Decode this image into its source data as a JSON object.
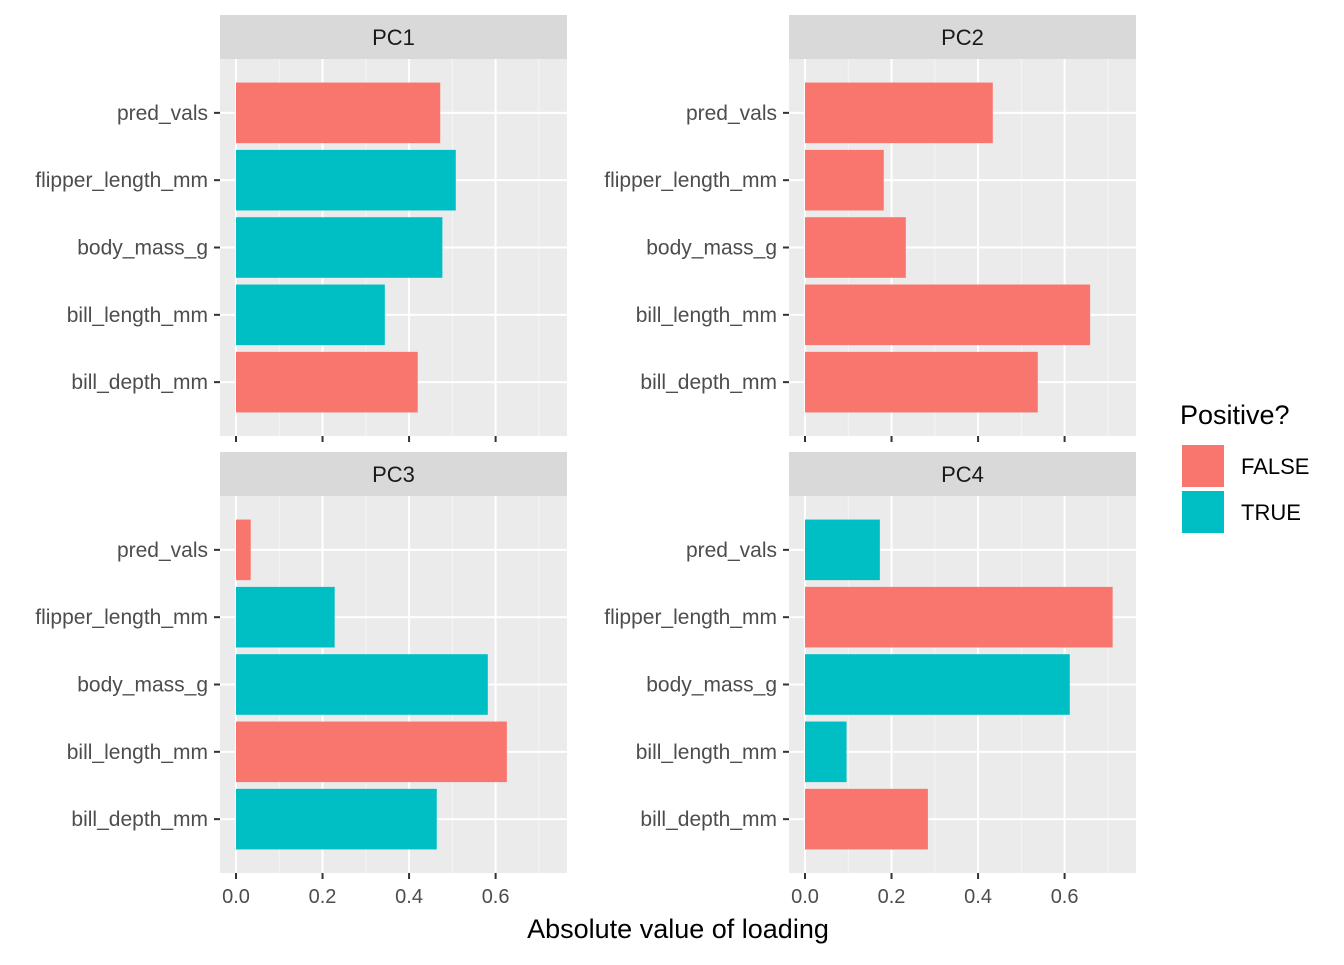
{
  "chart_data": {
    "type": "bar",
    "orientation": "horizontal",
    "xlabel": "Absolute value of loading",
    "ylabel": "",
    "xlim": [
      0,
      0.75
    ],
    "x_ticks": [
      0.0,
      0.2,
      0.4,
      0.6
    ],
    "x_tick_labels": [
      "0.0",
      "0.2",
      "0.4",
      "0.6"
    ],
    "grid": true,
    "legend_position": "right",
    "categories": [
      "pred_vals",
      "flipper_length_mm",
      "body_mass_g",
      "bill_length_mm",
      "bill_depth_mm"
    ],
    "legend": {
      "title": "Positive?",
      "entries": [
        {
          "label": "FALSE",
          "color": "#F8766D"
        },
        {
          "label": "TRUE",
          "color": "#00BFC4"
        }
      ]
    },
    "panels": [
      {
        "title": "PC1",
        "values": [
          0.472,
          0.508,
          0.477,
          0.344,
          0.42
        ],
        "positive": [
          "FALSE",
          "TRUE",
          "TRUE",
          "TRUE",
          "FALSE"
        ]
      },
      {
        "title": "PC2",
        "values": [
          0.434,
          0.182,
          0.233,
          0.659,
          0.538
        ],
        "positive": [
          "FALSE",
          "FALSE",
          "FALSE",
          "FALSE",
          "FALSE"
        ]
      },
      {
        "title": "PC3",
        "values": [
          0.034,
          0.228,
          0.582,
          0.626,
          0.464
        ],
        "positive": [
          "FALSE",
          "TRUE",
          "TRUE",
          "FALSE",
          "TRUE"
        ]
      },
      {
        "title": "PC4",
        "values": [
          0.173,
          0.711,
          0.612,
          0.096,
          0.284
        ],
        "positive": [
          "TRUE",
          "FALSE",
          "TRUE",
          "TRUE",
          "FALSE"
        ]
      }
    ]
  }
}
